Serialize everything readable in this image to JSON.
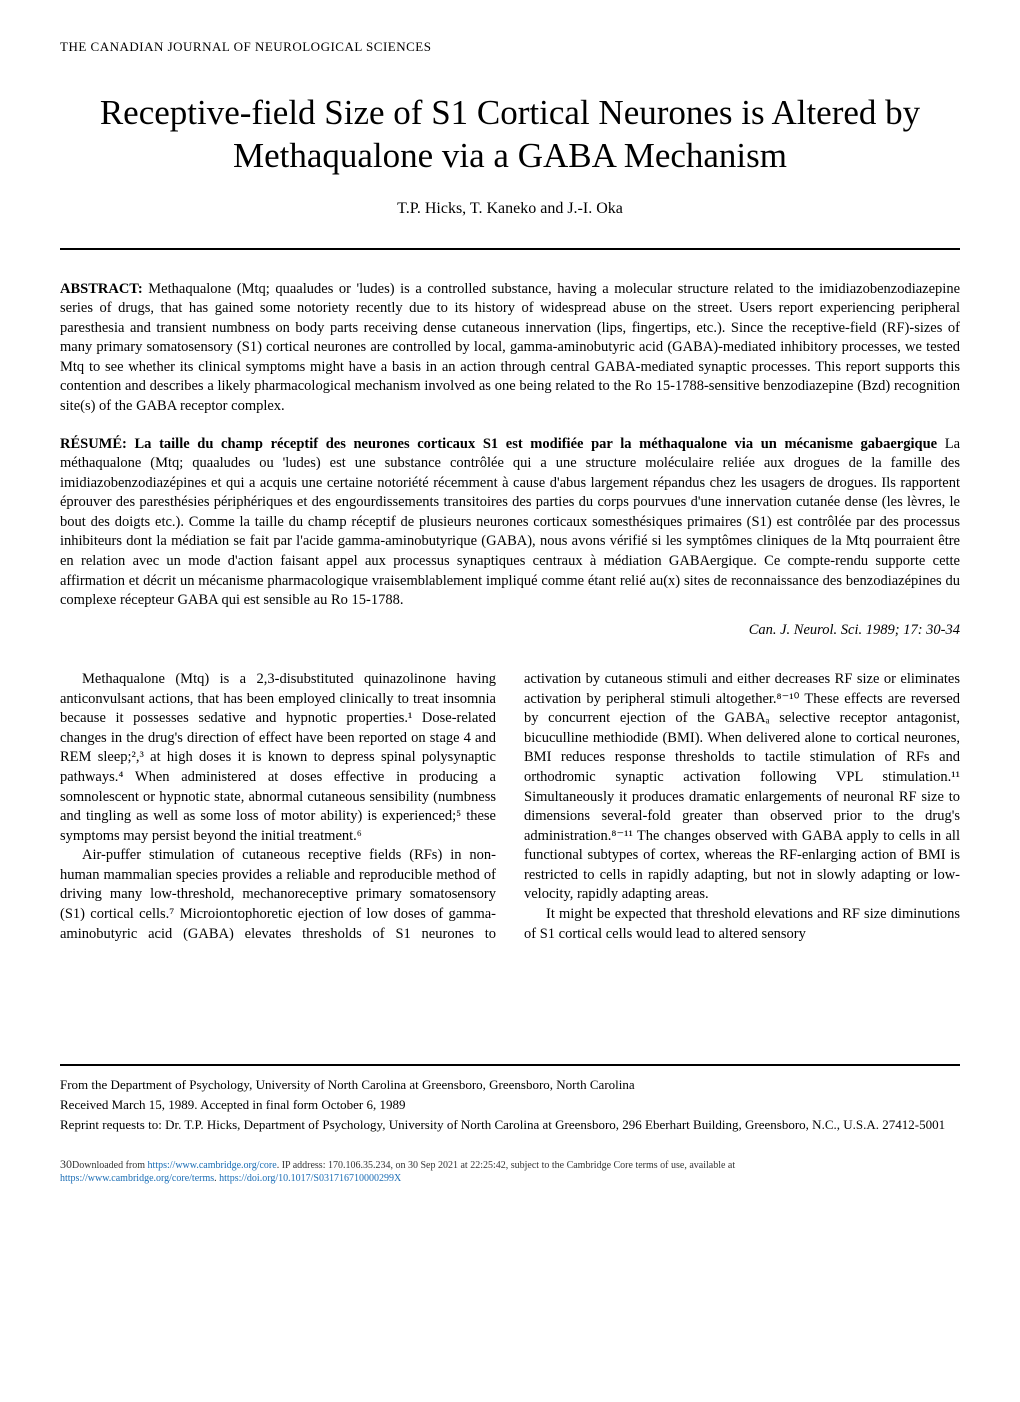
{
  "journal_header": "THE CANADIAN JOURNAL OF NEUROLOGICAL SCIENCES",
  "title": "Receptive-field Size of S1 Cortical Neurones is Altered by Methaqualone via a GABA Mechanism",
  "authors": "T.P. Hicks, T. Kaneko and J.-I. Oka",
  "abstract": {
    "label": "ABSTRACT:",
    "text": "Methaqualone (Mtq; quaaludes or 'ludes) is a controlled substance, having a molecular structure related to the imidiazobenzodiazepine series of drugs, that has gained some notoriety recently due to its history of widespread abuse on the street. Users report experiencing peripheral paresthesia and transient numbness on body parts receiving dense cutaneous innervation (lips, fingertips, etc.). Since the receptive-field (RF)-sizes of many primary somatosensory (S1) cortical neurones are controlled by local, gamma-aminobutyric acid (GABA)-mediated inhibitory processes, we tested Mtq to see whether its clinical symptoms might have a basis in an action through central GABA-mediated synaptic processes. This report supports this contention and describes a likely pharmacological mechanism involved as one being related to the Ro 15-1788-sensitive benzodiazepine (Bzd) recognition site(s) of the GABA receptor complex."
  },
  "resume": {
    "label": "RÉSUMÉ:",
    "subtitle": "La taille du champ réceptif des neurones corticaux S1 est modifiée par la méthaqualone via un mécanisme gabaergique",
    "text": "La méthaqualone (Mtq; quaaludes ou 'ludes) est une substance contrôlée qui a une structure moléculaire reliée aux drogues de la famille des imidiazobenzodiazépines et qui a acquis une certaine notoriété récemment à cause d'abus largement répandus chez les usagers de drogues. Ils rapportent éprouver des paresthésies périphériques et des engourdissements transitoires des parties du corps pourvues d'une innervation cutanée dense (les lèvres, le bout des doigts etc.). Comme la taille du champ réceptif de plusieurs neurones corticaux somesthésiques primaires (S1) est contrôlée par des processus inhibiteurs dont la médiation se fait par l'acide gamma-aminobutyrique (GABA), nous avons vérifié si les symptômes cliniques de la Mtq pourraient être en relation avec un mode d'action faisant appel aux processus synaptiques centraux à médiation GABAergique. Ce compte-rendu supporte cette affirmation et décrit un mécanisme pharmacologique vraisemblablement impliqué comme étant relié au(x) sites de reconnaissance des benzodiazépines du complexe récepteur GABA qui est sensible au Ro 15-1788."
  },
  "citation": "Can. J. Neurol. Sci. 1989; 17: 30-34",
  "body": {
    "p1": "Methaqualone (Mtq) is a 2,3-disubstituted quinazolinone having anticonvulsant actions, that has been employed clinically to treat insomnia because it possesses sedative and hypnotic properties.¹ Dose-related changes in the drug's direction of effect have been reported on stage 4 and REM sleep;²,³ at high doses it is known to depress spinal polysynaptic pathways.⁴ When administered at doses effective in producing a somnolescent or hypnotic state, abnormal cutaneous sensibility (numbness and tingling as well as some loss of motor ability) is experienced;⁵ these symptoms may persist beyond the initial treatment.⁶",
    "p2": "Air-puffer stimulation of cutaneous receptive fields (RFs) in non-human mammalian species provides a reliable and reproducible method of driving many low-threshold, mechanoreceptive primary somatosensory (S1) cortical cells.⁷ Microiontophoretic ejection of low doses of gamma-aminobutyric acid (GABA) elevates thresholds of S1 neurones to activation by cutaneous stimuli and either decreases RF size or eliminates activation by peripheral stimuli altogether.⁸⁻¹⁰ These effects are reversed by concurrent ejection of the GABAₐ selective receptor antagonist, bicuculline methiodide (BMI). When delivered alone to cortical neurones, BMI reduces response thresholds to tactile stimulation of RFs and orthodromic synaptic activation following VPL stimulation.¹¹ Simultaneously it produces dramatic enlargements of neuronal RF size to dimensions several-fold greater than observed prior to the drug's administration.⁸⁻¹¹ The changes observed with GABA apply to cells in all functional subtypes of cortex, whereas the RF-enlarging action of BMI is restricted to cells in rapidly adapting, but not in slowly adapting or low-velocity, rapidly adapting areas.",
    "p3": "It might be expected that threshold elevations and RF size diminutions of S1 cortical cells would lead to altered sensory"
  },
  "footer": {
    "affiliation": "From the Department of Psychology, University of North Carolina at Greensboro, Greensboro, North Carolina",
    "received": "Received March 15, 1989. Accepted in final form October 6, 1989",
    "reprints": "Reprint requests to: Dr. T.P. Hicks, Department of Psychology, University of North Carolina at Greensboro, 296 Eberhart Building, Greensboro, N.C., U.S.A. 27412-5001"
  },
  "download": {
    "page_num": "30",
    "prefix": "Downloaded from ",
    "link1": "https://www.cambridge.org/core",
    "mid1": ". IP address: 170.106.35.234, on 30 Sep 2021 at 22:25:42, subject to the Cambridge Core terms of use, available at",
    "link2": "https://www.cambridge.org/core/terms",
    "mid2": ". ",
    "link3": "https://doi.org/10.1017/S031716710000299X"
  }
}
